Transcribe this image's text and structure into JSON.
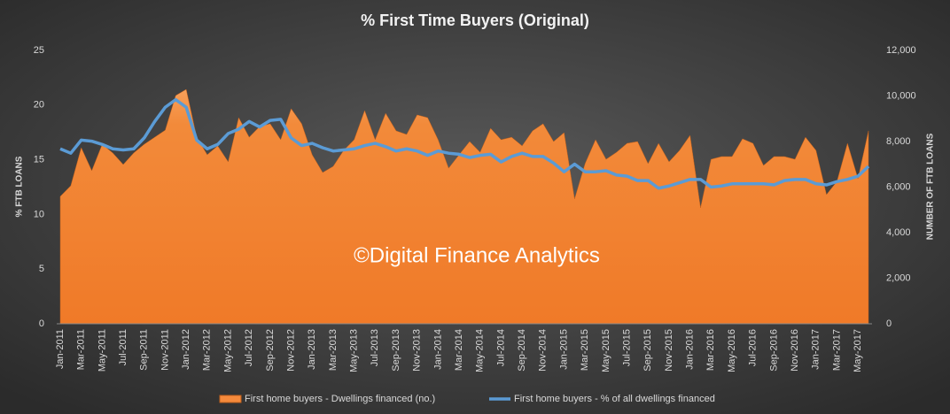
{
  "chart_data": {
    "type": "area-line",
    "title": "% First Time Buyers (Original)",
    "y_label": "% FTB LOANS",
    "y2_label": "NUMBER OF FTB LOANS",
    "annotation": "©Digital Finance Analytics",
    "grid": false,
    "legend": "bottom",
    "categories": [
      "Jan-2011",
      null,
      "Mar-2011",
      null,
      "May-2011",
      null,
      "Jul-2011",
      null,
      "Sep-2011",
      null,
      "Nov-2011",
      null,
      "Jan-2012",
      null,
      "Mar-2012",
      null,
      "May-2012",
      null,
      "Jul-2012",
      null,
      "Sep-2012",
      null,
      "Nov-2012",
      null,
      "Jan-2013",
      null,
      "Mar-2013",
      null,
      "May-2013",
      null,
      "Jul-2013",
      null,
      "Sep-2013",
      null,
      "Nov-2013",
      null,
      "Jan-2014",
      null,
      "Mar-2014",
      null,
      "May-2014",
      null,
      "Jul-2014",
      null,
      "Sep-2014",
      null,
      "Nov-2014",
      null,
      "Jan-2015",
      null,
      "Mar-2015",
      null,
      "May-2015",
      null,
      "Jul-2015",
      null,
      "Sep-2015",
      null,
      "Nov-2015",
      null,
      "Jan-2016",
      null,
      "Mar-2016",
      null,
      "May-2016",
      null,
      "Jul-2016",
      null,
      "Sep-2016",
      null,
      "Nov-2016",
      null,
      "Jan-2017",
      null,
      "Mar-2017",
      null,
      "May-2017",
      null
    ],
    "ylim": [
      0,
      25
    ],
    "yticks": [
      0,
      5,
      10,
      15,
      20,
      25
    ],
    "y2lim": [
      0,
      12000
    ],
    "y2ticks": [
      0,
      {
        "value": 2000,
        "label": "2,000"
      },
      {
        "value": 4000,
        "label": "4,000"
      },
      {
        "value": 6000,
        "label": "6,000"
      },
      {
        "value": 8000,
        "label": "8,000"
      },
      {
        "value": 10000,
        "label": "10,000"
      },
      {
        "value": 12000,
        "label": "12,000"
      }
    ],
    "series": [
      {
        "name": "First home buyers - Dwellings financed (no.)",
        "kind": "area",
        "axis": "y2",
        "color": "#f58a3c",
        "values": [
          5590,
          6060,
          7730,
          6720,
          7880,
          7500,
          6990,
          7500,
          7880,
          8190,
          8500,
          10020,
          10290,
          8190,
          7420,
          7810,
          7110,
          9050,
          8190,
          8660,
          8780,
          8080,
          9440,
          8780,
          7420,
          6640,
          6910,
          7610,
          8080,
          9360,
          8080,
          9240,
          8470,
          8310,
          9170,
          9050,
          8080,
          6830,
          7420,
          8000,
          7530,
          8580,
          8080,
          8190,
          7810,
          8470,
          8780,
          8000,
          8390,
          5480,
          7030,
          8080,
          7220,
          7530,
          7920,
          8000,
          7030,
          7920,
          7110,
          7610,
          8270,
          5090,
          7220,
          7340,
          7340,
          8120,
          7920,
          6950,
          7340,
          7340,
          7220,
          8190,
          7610,
          5670,
          6250,
          7920,
          6370,
          8470
        ]
      },
      {
        "name": "First home buyers - % of all dwellings financed",
        "kind": "line",
        "axis": "y",
        "color": "#5b9bd5",
        "values": [
          16.0,
          15.6,
          16.8,
          16.7,
          16.4,
          16.0,
          15.9,
          16.0,
          17.0,
          18.5,
          19.8,
          20.5,
          19.8,
          16.8,
          16.0,
          16.4,
          17.4,
          17.8,
          18.5,
          18.0,
          18.6,
          18.7,
          17.0,
          16.3,
          16.5,
          16.1,
          15.8,
          15.9,
          16.0,
          16.3,
          16.5,
          16.2,
          15.8,
          16.0,
          15.8,
          15.4,
          15.8,
          15.6,
          15.5,
          15.2,
          15.4,
          15.5,
          14.8,
          15.3,
          15.6,
          15.3,
          15.3,
          14.7,
          13.9,
          14.6,
          13.9,
          13.9,
          14.0,
          13.6,
          13.5,
          13.1,
          13.1,
          12.4,
          12.6,
          12.9,
          13.2,
          13.2,
          12.5,
          12.6,
          12.8,
          12.8,
          12.8,
          12.8,
          12.7,
          13.1,
          13.2,
          13.2,
          12.8,
          12.7,
          13.0,
          13.2,
          13.5,
          14.4
        ]
      }
    ]
  }
}
